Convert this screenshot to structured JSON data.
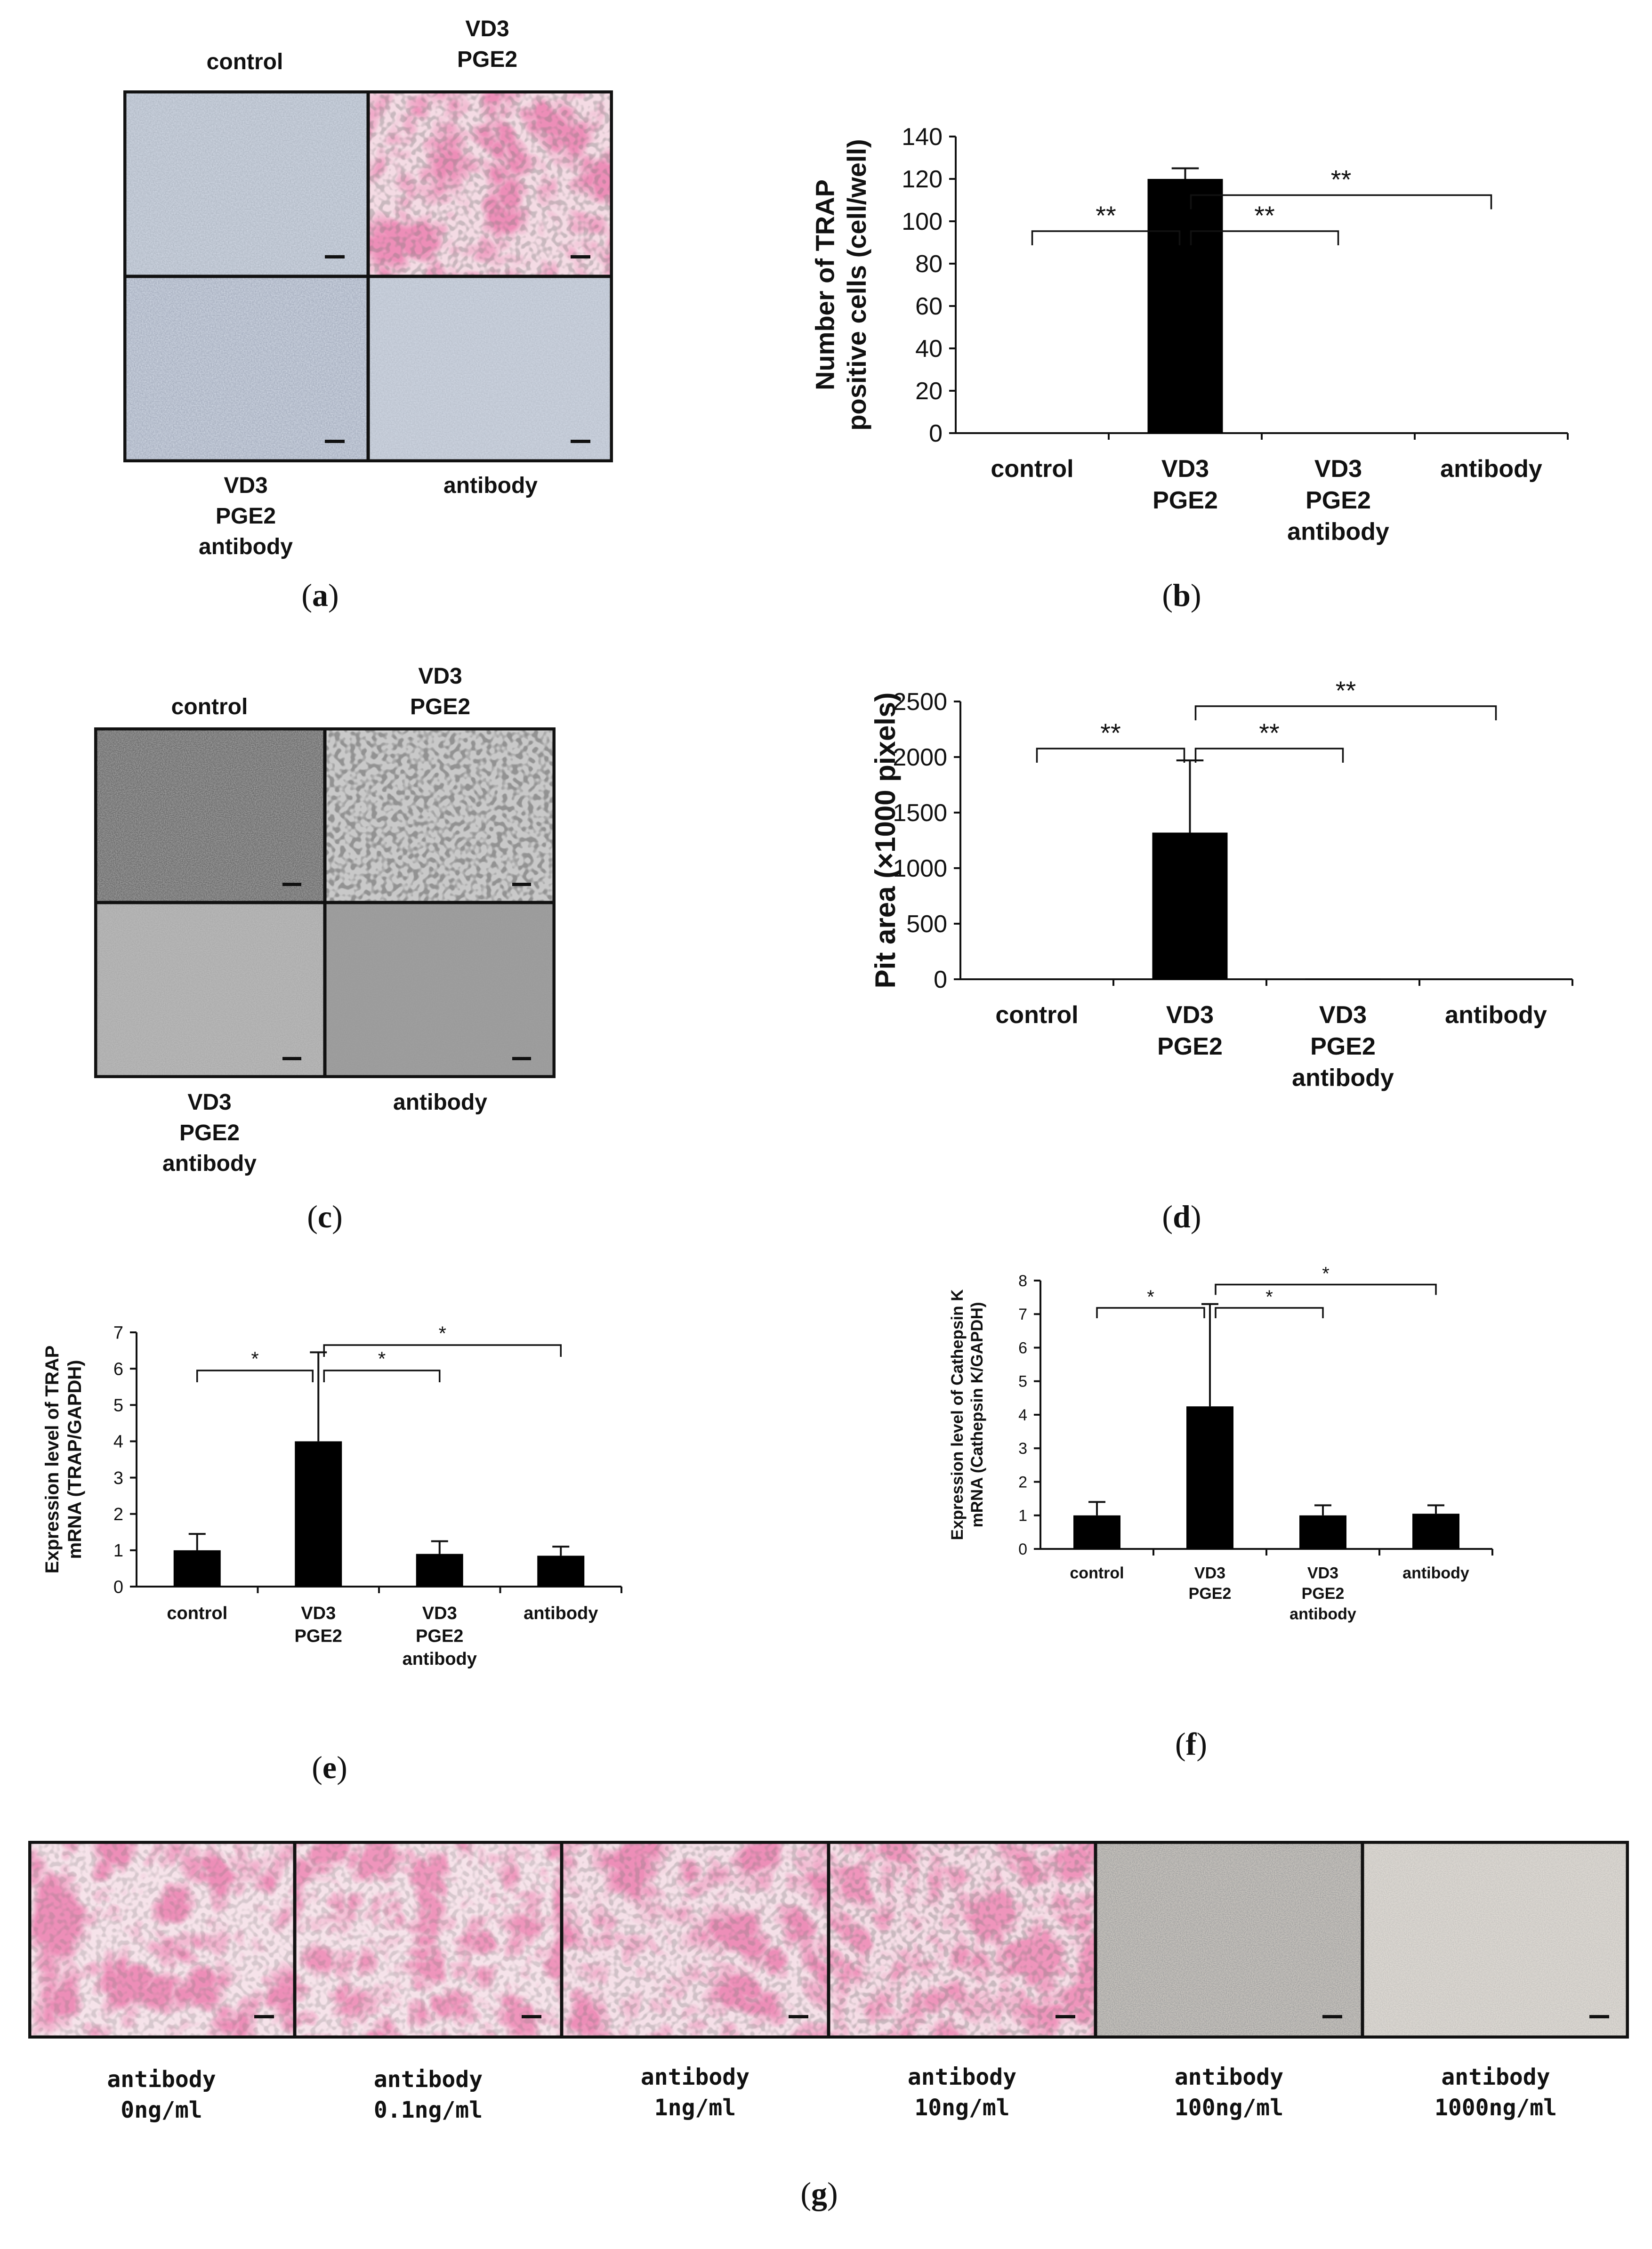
{
  "colors": {
    "trap_pink": "#d8457a",
    "trap_light": "#f3c2d4",
    "negative_gray": "#aab4c2",
    "bar": "#000000"
  },
  "panel_a": {
    "letter": "a",
    "labels": {
      "top_left": "control",
      "top_right": "VD3\nPGE2",
      "bottom_left": "VD3\nPGE2\nantibody",
      "bottom_right": "antibody"
    }
  },
  "panel_c": {
    "letter": "c",
    "labels": {
      "top_left": "control",
      "top_right": "VD3\nPGE2",
      "bottom_left": "VD3\nPGE2\nantibody",
      "bottom_right": "antibody"
    }
  },
  "panel_g": {
    "letter": "g",
    "labels": [
      "antibody\n0ng/ml",
      "antibody\n0.1ng/ml",
      "antibody\n1ng/ml",
      "antibody\n10ng/ml",
      "antibody\n100ng/ml",
      "antibody\n1000ng/ml"
    ]
  },
  "chart_data": [
    {
      "id": "b",
      "letter": "b",
      "type": "bar",
      "categories": [
        "control",
        "VD3\nPGE2",
        "VD3\nPGE2\nantibody",
        "antibody"
      ],
      "values": [
        0,
        120,
        0,
        0
      ],
      "errors": [
        0,
        5,
        0,
        0
      ],
      "ylabel": "Number of TRAP\npositive cells (cell/well)",
      "ylim": [
        0,
        140
      ],
      "yticks": [
        0,
        20,
        40,
        60,
        80,
        100,
        120,
        140
      ],
      "significance": [
        {
          "from": 0,
          "to": 1,
          "label": "**"
        },
        {
          "from": 1,
          "to": 2,
          "label": "**"
        },
        {
          "from": 1,
          "to": 3,
          "label": "**"
        }
      ]
    },
    {
      "id": "d",
      "letter": "d",
      "type": "bar",
      "categories": [
        "control",
        "VD3\nPGE2",
        "VD3\nPGE2\nantibody",
        "antibody"
      ],
      "values": [
        0,
        1320,
        5,
        0
      ],
      "errors": [
        0,
        650,
        0,
        0
      ],
      "ylabel": "Pit area (×1000 pixels)",
      "ylim": [
        0,
        2500
      ],
      "yticks": [
        0,
        500,
        1000,
        1500,
        2000,
        2500
      ],
      "significance": [
        {
          "from": 0,
          "to": 1,
          "label": "**"
        },
        {
          "from": 1,
          "to": 2,
          "label": "**"
        },
        {
          "from": 1,
          "to": 3,
          "label": "**"
        }
      ]
    },
    {
      "id": "e",
      "letter": "e",
      "type": "bar",
      "categories": [
        "control",
        "VD3\nPGE2",
        "VD3\nPGE2\nantibody",
        "antibody"
      ],
      "values": [
        1.0,
        4.0,
        0.9,
        0.85
      ],
      "errors": [
        0.45,
        2.45,
        0.35,
        0.25
      ],
      "ylabel": "Expression level of TRAP\nmRNA (TRAP/GAPDH)",
      "ylim": [
        0,
        7
      ],
      "yticks": [
        0,
        1,
        2,
        3,
        4,
        5,
        6,
        7
      ],
      "significance": [
        {
          "from": 0,
          "to": 1,
          "label": "*"
        },
        {
          "from": 1,
          "to": 2,
          "label": "*"
        },
        {
          "from": 1,
          "to": 3,
          "label": "*"
        }
      ]
    },
    {
      "id": "f",
      "letter": "f",
      "type": "bar",
      "categories": [
        "control",
        "VD3\nPGE2",
        "VD3\nPGE2\nantibody",
        "antibody"
      ],
      "values": [
        1.0,
        4.25,
        1.0,
        1.05
      ],
      "errors": [
        0.4,
        3.05,
        0.3,
        0.25
      ],
      "ylabel": "Expression level of Cathepsin K\nmRNA (Cathepsin K/GAPDH)",
      "ylim": [
        0,
        8
      ],
      "yticks": [
        0,
        1,
        2,
        3,
        4,
        5,
        6,
        7,
        8
      ],
      "significance": [
        {
          "from": 0,
          "to": 1,
          "label": "*"
        },
        {
          "from": 1,
          "to": 2,
          "label": "*"
        },
        {
          "from": 1,
          "to": 3,
          "label": "*"
        }
      ]
    }
  ]
}
